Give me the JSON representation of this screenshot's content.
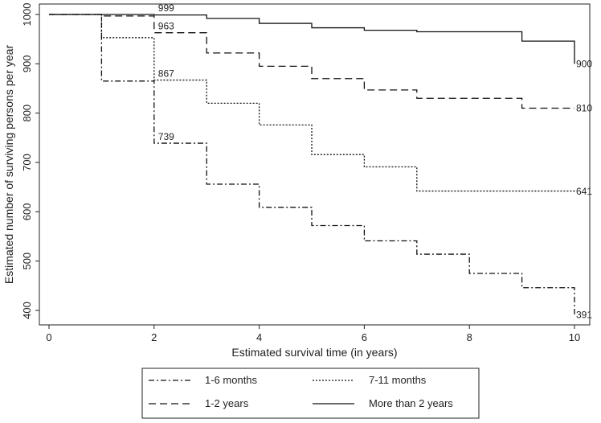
{
  "chart_data": {
    "type": "line",
    "title": "",
    "xlabel": "Estimated survival time (in years)",
    "ylabel": "Estimated number of surviving persons per year",
    "xlim": [
      0,
      10
    ],
    "ylim": [
      385,
      1005
    ],
    "x_ticks": [
      "0",
      "2",
      "4",
      "6",
      "8",
      "10"
    ],
    "y_ticks": [
      "400",
      "500",
      "600",
      "700",
      "800",
      "900",
      "1000"
    ],
    "x": [
      0,
      1,
      2,
      3,
      4,
      5,
      6,
      7,
      8,
      9,
      10
    ],
    "series": [
      {
        "name": "1-6 months",
        "dash": "dashdot",
        "values": [
          1000,
          865,
          739,
          656,
          609,
          572,
          541,
          514,
          475,
          446,
          391
        ]
      },
      {
        "name": "7-11 months",
        "dash": "dotted",
        "values": [
          1000,
          953,
          867,
          820,
          776,
          716,
          691,
          642,
          642,
          642,
          641
        ]
      },
      {
        "name": "1-2 years",
        "dash": "dashed",
        "values": [
          1000,
          997,
          963,
          922,
          895,
          870,
          847,
          830,
          830,
          810,
          810
        ]
      },
      {
        "name": "More than 2 years",
        "dash": "solid",
        "values": [
          1000,
          1000,
          999,
          992,
          982,
          973,
          968,
          965,
          965,
          946,
          900
        ]
      }
    ],
    "annotations": [
      {
        "label": "999",
        "x": 2,
        "y": 1000
      },
      {
        "label": "963",
        "x": 2,
        "y": 963
      },
      {
        "label": "867",
        "x": 2,
        "y": 867
      },
      {
        "label": "739",
        "x": 2,
        "y": 739
      },
      {
        "label": "900",
        "x": 10,
        "y": 900
      },
      {
        "label": "810",
        "x": 10,
        "y": 810
      },
      {
        "label": "641",
        "x": 10,
        "y": 641
      },
      {
        "label": "391",
        "x": 10,
        "y": 391
      }
    ],
    "legend": "bottom",
    "grid": false
  }
}
